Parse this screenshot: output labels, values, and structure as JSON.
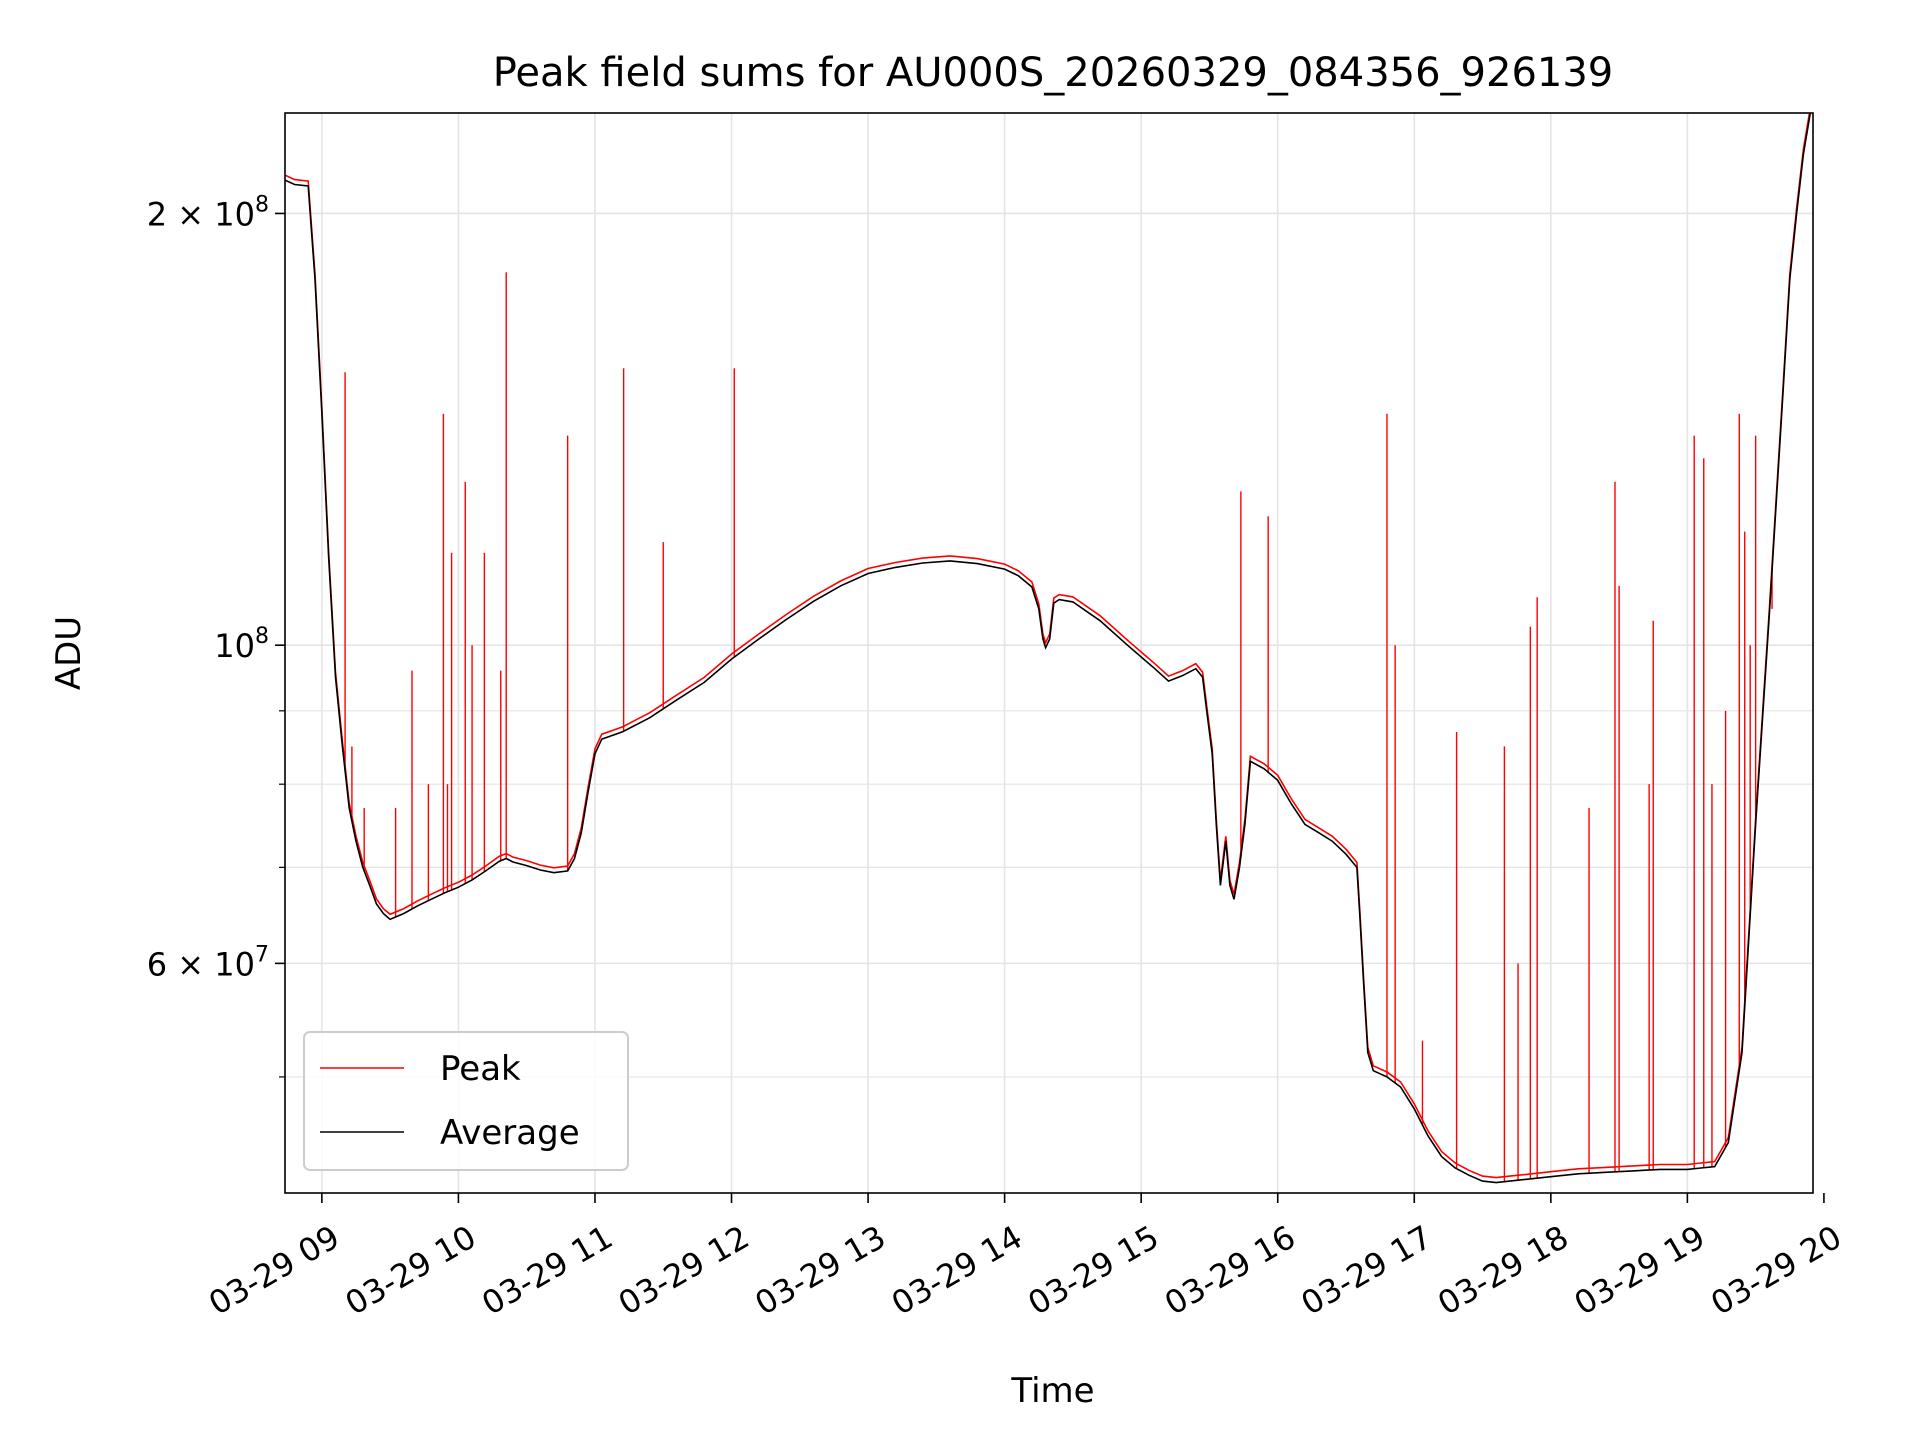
{
  "chart_data": {
    "type": "line",
    "title": "Peak field sums for AU000S_20260329_084356_926139",
    "xlabel": "Time",
    "ylabel": "ADU",
    "y_scale": "log",
    "xlim": [
      8.73,
      19.92
    ],
    "ylim": [
      41500000,
      235000000
    ],
    "grid": true,
    "legend_position": "lower-left",
    "x_ticks": [
      {
        "value": 9,
        "label": "03-29 09"
      },
      {
        "value": 10,
        "label": "03-29 10"
      },
      {
        "value": 11,
        "label": "03-29 11"
      },
      {
        "value": 12,
        "label": "03-29 12"
      },
      {
        "value": 13,
        "label": "03-29 13"
      },
      {
        "value": 14,
        "label": "03-29 14"
      },
      {
        "value": 15,
        "label": "03-29 15"
      },
      {
        "value": 16,
        "label": "03-29 16"
      },
      {
        "value": 17,
        "label": "03-29 17"
      },
      {
        "value": 18,
        "label": "03-29 18"
      },
      {
        "value": 19,
        "label": "03-29 19"
      },
      {
        "value": 20,
        "label": "03-29 20"
      }
    ],
    "y_major_ticks": [
      {
        "value": 60000000,
        "mant": "6 × 10",
        "exp": "7"
      },
      {
        "value": 100000000,
        "mant": "10",
        "exp": "8"
      },
      {
        "value": 200000000,
        "mant": "2 × 10",
        "exp": "8"
      }
    ],
    "y_minor_ticks": [
      50000000,
      70000000,
      80000000,
      90000000
    ],
    "series": [
      {
        "name": "Average",
        "color": "#000000",
        "points": [
          [
            8.73,
            211000000
          ],
          [
            8.8,
            209500000
          ],
          [
            8.9,
            209000000
          ],
          [
            8.95,
            180000000
          ],
          [
            9.0,
            145000000
          ],
          [
            9.05,
            115000000
          ],
          [
            9.1,
            95000000
          ],
          [
            9.15,
            85000000
          ],
          [
            9.2,
            77000000
          ],
          [
            9.25,
            73000000
          ],
          [
            9.3,
            70000000
          ],
          [
            9.35,
            68000000
          ],
          [
            9.4,
            66000000
          ],
          [
            9.45,
            65000000
          ],
          [
            9.5,
            64400000
          ],
          [
            9.6,
            65000000
          ],
          [
            9.7,
            65800000
          ],
          [
            9.8,
            66500000
          ],
          [
            9.9,
            67200000
          ],
          [
            10.0,
            67800000
          ],
          [
            10.1,
            68600000
          ],
          [
            10.2,
            69600000
          ],
          [
            10.3,
            70700000
          ],
          [
            10.35,
            71000000
          ],
          [
            10.4,
            70600000
          ],
          [
            10.5,
            70200000
          ],
          [
            10.6,
            69700000
          ],
          [
            10.7,
            69400000
          ],
          [
            10.8,
            69600000
          ],
          [
            10.85,
            71000000
          ],
          [
            10.9,
            74000000
          ],
          [
            10.95,
            79000000
          ],
          [
            11.0,
            84000000
          ],
          [
            11.05,
            86000000
          ],
          [
            11.2,
            87000000
          ],
          [
            11.4,
            89000000
          ],
          [
            11.6,
            91600000
          ],
          [
            11.8,
            94200000
          ],
          [
            12.0,
            97800000
          ],
          [
            12.2,
            101000000
          ],
          [
            12.4,
            104200000
          ],
          [
            12.6,
            107300000
          ],
          [
            12.8,
            110000000
          ],
          [
            13.0,
            112200000
          ],
          [
            13.2,
            113300000
          ],
          [
            13.4,
            114100000
          ],
          [
            13.6,
            114500000
          ],
          [
            13.8,
            114000000
          ],
          [
            14.0,
            113000000
          ],
          [
            14.1,
            111800000
          ],
          [
            14.2,
            109800000
          ],
          [
            14.25,
            106000000
          ],
          [
            14.28,
            101000000
          ],
          [
            14.3,
            99600000
          ],
          [
            14.33,
            101000000
          ],
          [
            14.36,
            107000000
          ],
          [
            14.4,
            107600000
          ],
          [
            14.5,
            107200000
          ],
          [
            14.7,
            104000000
          ],
          [
            14.9,
            100000000
          ],
          [
            15.1,
            96300000
          ],
          [
            15.2,
            94400000
          ],
          [
            15.3,
            95200000
          ],
          [
            15.4,
            96300000
          ],
          [
            15.45,
            95000000
          ],
          [
            15.48,
            90000000
          ],
          [
            15.52,
            84000000
          ],
          [
            15.55,
            75000000
          ],
          [
            15.58,
            68000000
          ],
          [
            15.62,
            73000000
          ],
          [
            15.65,
            68000000
          ],
          [
            15.68,
            66500000
          ],
          [
            15.72,
            70000000
          ],
          [
            15.76,
            75000000
          ],
          [
            15.8,
            83000000
          ],
          [
            15.9,
            82000000
          ],
          [
            16.0,
            80500000
          ],
          [
            16.1,
            77500000
          ],
          [
            16.2,
            75000000
          ],
          [
            16.3,
            74000000
          ],
          [
            16.4,
            73000000
          ],
          [
            16.5,
            71500000
          ],
          [
            16.58,
            70000000
          ],
          [
            16.6,
            65000000
          ],
          [
            16.63,
            58000000
          ],
          [
            16.66,
            52000000
          ],
          [
            16.7,
            50500000
          ],
          [
            16.8,
            50000000
          ],
          [
            16.9,
            49200000
          ],
          [
            17.0,
            47500000
          ],
          [
            17.1,
            45500000
          ],
          [
            17.2,
            44000000
          ],
          [
            17.3,
            43200000
          ],
          [
            17.4,
            42700000
          ],
          [
            17.5,
            42300000
          ],
          [
            17.6,
            42200000
          ],
          [
            17.7,
            42300000
          ],
          [
            17.8,
            42400000
          ],
          [
            18.0,
            42600000
          ],
          [
            18.2,
            42800000
          ],
          [
            18.4,
            42900000
          ],
          [
            18.6,
            43000000
          ],
          [
            18.8,
            43100000
          ],
          [
            19.0,
            43100000
          ],
          [
            19.1,
            43200000
          ],
          [
            19.2,
            43300000
          ],
          [
            19.3,
            45000000
          ],
          [
            19.4,
            52000000
          ],
          [
            19.5,
            75000000
          ],
          [
            19.6,
            105000000
          ],
          [
            19.7,
            150000000
          ],
          [
            19.75,
            180000000
          ],
          [
            19.8,
            200000000
          ],
          [
            19.85,
            220000000
          ],
          [
            19.9,
            235000000
          ]
        ]
      },
      {
        "name": "Peak",
        "color": "#ff0000",
        "spikes": [
          [
            9.17,
            155000000
          ],
          [
            9.22,
            85000000
          ],
          [
            9.31,
            77000000
          ],
          [
            9.54,
            77000000
          ],
          [
            9.66,
            96000000
          ],
          [
            9.78,
            80000000
          ],
          [
            9.89,
            145000000
          ],
          [
            9.92,
            80000000
          ],
          [
            9.95,
            116000000
          ],
          [
            10.05,
            130000000
          ],
          [
            10.1,
            100000000
          ],
          [
            10.19,
            116000000
          ],
          [
            10.31,
            96000000
          ],
          [
            10.35,
            182000000
          ],
          [
            10.8,
            140000000
          ],
          [
            11.21,
            156000000
          ],
          [
            11.5,
            118000000
          ],
          [
            12.02,
            156000000
          ],
          [
            15.73,
            128000000
          ],
          [
            15.93,
            123000000
          ],
          [
            16.8,
            145000000
          ],
          [
            16.86,
            100000000
          ],
          [
            17.06,
            53000000
          ],
          [
            17.31,
            87000000
          ],
          [
            17.66,
            85000000
          ],
          [
            17.76,
            60000000
          ],
          [
            17.85,
            103000000
          ],
          [
            17.9,
            108000000
          ],
          [
            18.28,
            77000000
          ],
          [
            18.47,
            130000000
          ],
          [
            18.5,
            110000000
          ],
          [
            18.72,
            80000000
          ],
          [
            18.75,
            104000000
          ],
          [
            19.05,
            140000000
          ],
          [
            19.12,
            135000000
          ],
          [
            19.18,
            80000000
          ],
          [
            19.28,
            90000000
          ],
          [
            19.38,
            145000000
          ],
          [
            19.42,
            120000000
          ],
          [
            19.46,
            100000000
          ],
          [
            19.5,
            140000000
          ],
          [
            19.62,
            106000000
          ]
        ]
      }
    ]
  }
}
